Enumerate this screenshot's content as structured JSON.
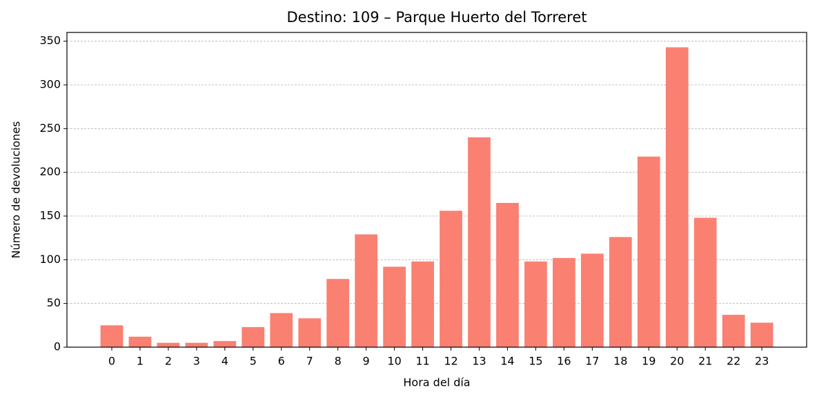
{
  "chart_data": {
    "type": "bar",
    "title": "Destino: 109 – Parque Huerto del Torreret",
    "x_label": "Hora del día",
    "y_label": "Número de devoluciones",
    "categories": [
      "0",
      "1",
      "2",
      "3",
      "4",
      "5",
      "6",
      "7",
      "8",
      "9",
      "10",
      "11",
      "12",
      "13",
      "14",
      "15",
      "16",
      "17",
      "18",
      "19",
      "20",
      "21",
      "22",
      "23"
    ],
    "values": [
      25,
      12,
      5,
      5,
      7,
      23,
      39,
      33,
      78,
      129,
      92,
      98,
      156,
      240,
      165,
      98,
      102,
      107,
      126,
      218,
      343,
      148,
      37,
      28
    ],
    "color": "#fa8072",
    "ylim": [
      0,
      360
    ],
    "yticks": [
      0,
      50,
      100,
      150,
      200,
      250,
      300,
      350
    ],
    "grid": true
  }
}
